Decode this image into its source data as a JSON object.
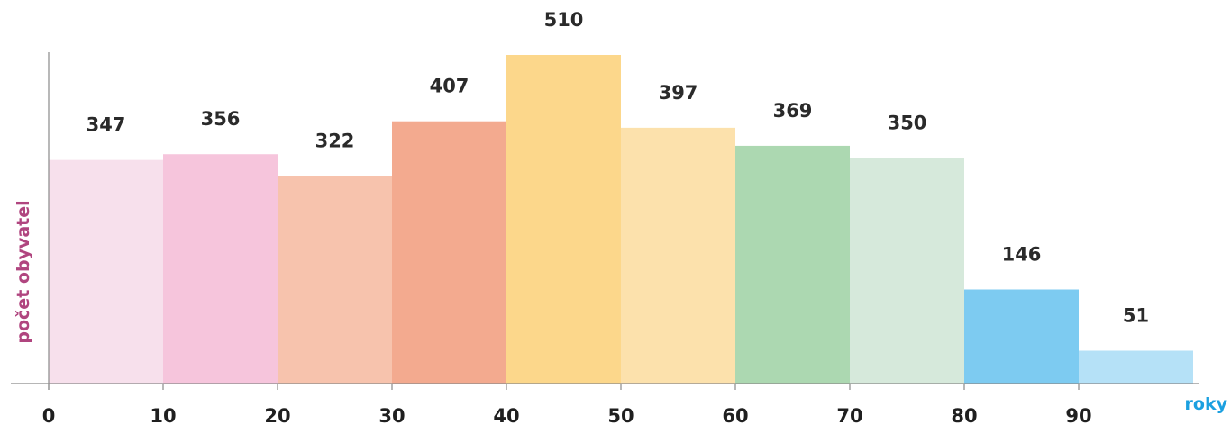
{
  "chart_data": {
    "type": "bar",
    "title": "",
    "xlabel": "roky",
    "ylabel": "počet obyvatel",
    "bin_edges": [
      0,
      10,
      20,
      30,
      40,
      50,
      60,
      70,
      80,
      90,
      100
    ],
    "tick_labels": [
      "0",
      "10",
      "20",
      "30",
      "40",
      "50",
      "60",
      "70",
      "80",
      "90"
    ],
    "values": [
      347,
      356,
      322,
      407,
      510,
      397,
      369,
      350,
      146,
      51
    ],
    "xlim": [
      0,
      100
    ],
    "ylim": [
      0,
      510
    ],
    "grid": false,
    "colors": [
      "#f7e0ec",
      "#f6c5dc",
      "#f7c3ad",
      "#f3aa8f",
      "#fcd78b",
      "#fce1ac",
      "#acd8b1",
      "#d6e9db",
      "#7dcbf1",
      "#b5e1f7"
    ],
    "ylabel_color": "#b0457f",
    "xlabel_color": "#1ba0e0",
    "axis_color": "#8a8a8a"
  }
}
